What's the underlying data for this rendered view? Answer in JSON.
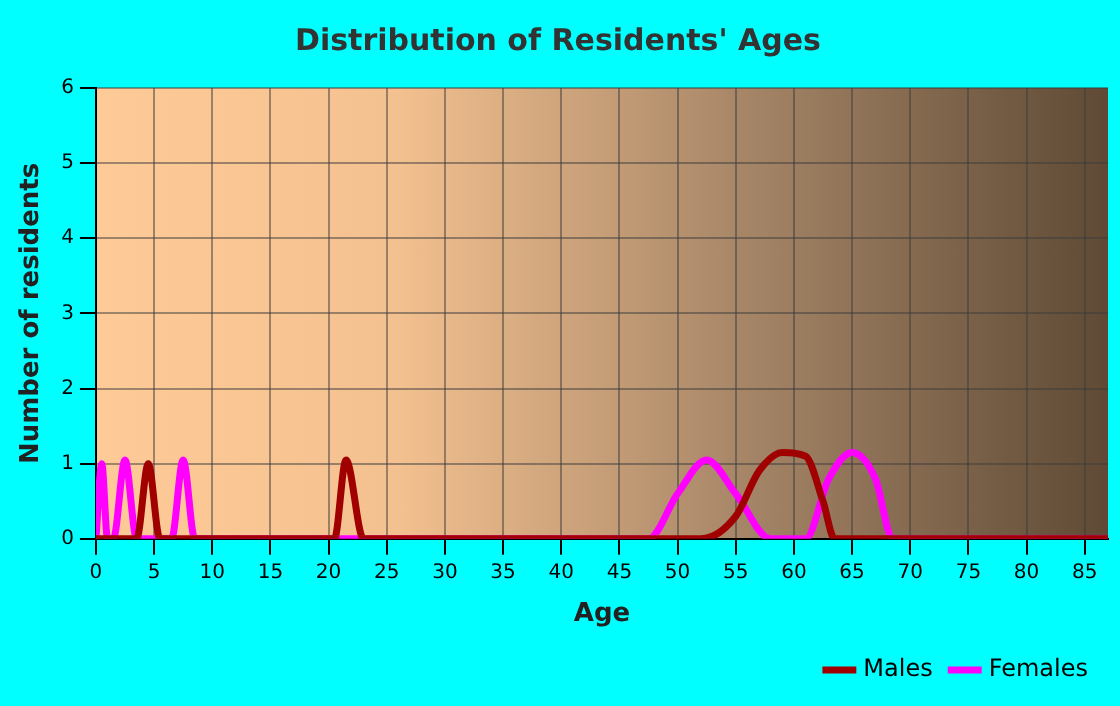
{
  "chart_data": {
    "type": "line",
    "title": "Distribution of Residents' Ages",
    "xlabel": "Age",
    "ylabel": "Number of residents",
    "series": [
      {
        "name": "Males",
        "color": "#a00000",
        "x": [
          0,
          3.5,
          4.5,
          5.5,
          20.5,
          21.5,
          23,
          52,
          55,
          57,
          59,
          61,
          62.5,
          63.5,
          87
        ],
        "values": [
          0,
          0,
          1,
          0,
          0,
          1.05,
          0,
          0,
          0.3,
          0.9,
          1.15,
          1.1,
          0.5,
          0,
          0
        ]
      },
      {
        "name": "Females",
        "color": "#ff00ff",
        "x": [
          0,
          0.5,
          1,
          1.5,
          2.5,
          3.5,
          6.5,
          7.5,
          8.5,
          47.5,
          50,
          52.5,
          55,
          58,
          61,
          63,
          65,
          67,
          68.5,
          87
        ],
        "values": [
          0,
          1,
          0,
          0,
          1.05,
          0,
          0,
          1.05,
          0,
          0,
          0.6,
          1.05,
          0.6,
          0,
          0,
          0.8,
          1.15,
          0.8,
          0,
          0
        ]
      }
    ],
    "xlim": [
      0,
      87
    ],
    "xticks": [
      0,
      5,
      10,
      15,
      20,
      25,
      30,
      35,
      40,
      45,
      50,
      55,
      60,
      65,
      70,
      75,
      80,
      85
    ],
    "ylim": [
      0,
      6
    ],
    "yticks": [
      0,
      1,
      2,
      3,
      4,
      5,
      6
    ],
    "grid": true,
    "legend": "bottom",
    "line_style": "solid",
    "marker": "none"
  }
}
